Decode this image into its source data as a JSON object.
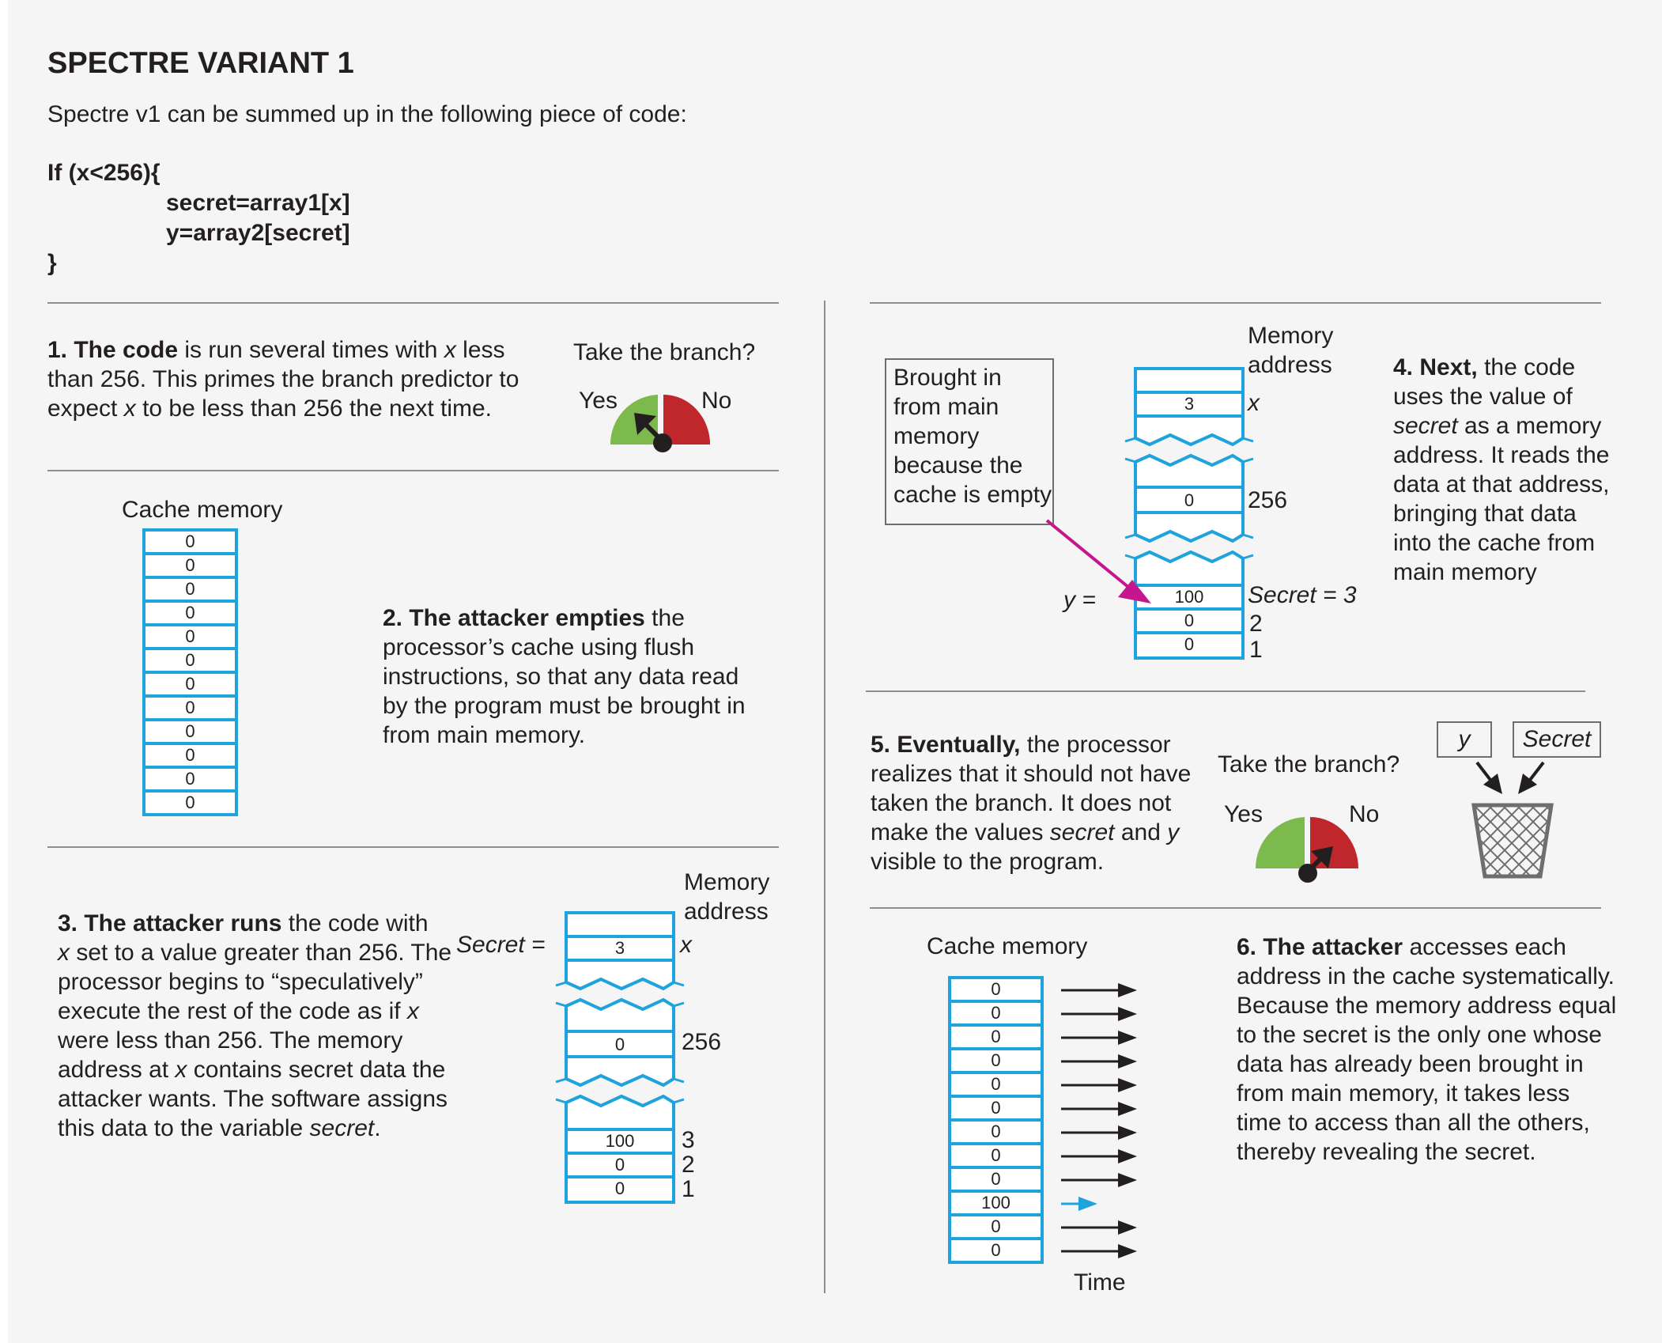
{
  "header": {
    "title": "SPECTRE VARIANT 1",
    "subtitle": "Spectre v1 can be summed up in the following piece of code:",
    "code_lines": [
      "If (x<256){",
      "secret=array1[x]",
      "y=array2[secret]",
      "}"
    ]
  },
  "step1": {
    "bold": "1. The code",
    "lines": [
      [
        "is run several times with ",
        "x",
        " less"
      ],
      [
        "than 256. This primes the branch predictor to"
      ],
      [
        "expect ",
        "x",
        " to be less than 256 the next time."
      ]
    ],
    "gauge_title": "Take the branch?",
    "yes": "Yes",
    "no": "No"
  },
  "step2": {
    "cache_label": "Cache memory",
    "cells": [
      "0",
      "0",
      "0",
      "0",
      "0",
      "0",
      "0",
      "0",
      "0",
      "0",
      "0",
      "0"
    ],
    "bold": "2. The attacker empties",
    "lines": [
      "the",
      "processor’s cache using flush",
      "instructions, so that any data read",
      "by the program must be brought in",
      "from main memory."
    ]
  },
  "step3": {
    "bold": "3. The attacker runs",
    "lines": [
      [
        "the code with"
      ],
      [
        "x",
        " set to a value greater than 256. The"
      ],
      [
        "processor begins to “speculatively”"
      ],
      [
        "execute the rest of the code as if ",
        "x"
      ],
      [
        "were less than 256. The memory"
      ],
      [
        "address at ",
        "x",
        " contains secret data the"
      ],
      [
        "attacker wants. The software assigns"
      ],
      [
        "this data to the variable ",
        "secret",
        "."
      ]
    ],
    "memory_address_label": [
      "Memory",
      "address"
    ],
    "secret_eq": "Secret =",
    "cells": {
      "x": "3",
      "256": "0",
      "low": [
        "100",
        "0",
        "0"
      ]
    },
    "addresses": {
      "x": "x",
      "mid": "256",
      "low": [
        "3",
        "2",
        "1"
      ]
    }
  },
  "step4": {
    "bold": "4. Next,",
    "lines": [
      [
        "the code"
      ],
      [
        "uses the value of"
      ],
      [
        "secret",
        " as a memory"
      ],
      [
        "address. It reads the"
      ],
      [
        "data at that address,"
      ],
      [
        "bringing that data"
      ],
      [
        "into the cache from"
      ],
      [
        "main memory"
      ]
    ],
    "callout": [
      "Brought in",
      "from main",
      "memory",
      "because the",
      "cache is empty"
    ],
    "memory_address_label": [
      "Memory",
      "address"
    ],
    "y_eq": "y =",
    "cells": {
      "x": "3",
      "256": "0",
      "low": [
        "100",
        "0",
        "0"
      ]
    },
    "addresses": {
      "x": "x",
      "mid": "256",
      "secret": "Secret = 3",
      "low": [
        "2",
        "1"
      ]
    }
  },
  "step5": {
    "bold": "5. Eventually,",
    "lines": [
      [
        "the processor"
      ],
      [
        "realizes that it should not have"
      ],
      [
        "taken the branch. It does not"
      ],
      [
        "make the values ",
        "secret",
        " and ",
        "y"
      ],
      [
        "visible to the program."
      ]
    ],
    "gauge_title": "Take the branch?",
    "yes": "Yes",
    "no": "No",
    "tag_y": "y",
    "tag_secret": "Secret"
  },
  "step6": {
    "cache_label": "Cache memory",
    "cells": [
      "0",
      "0",
      "0",
      "0",
      "0",
      "0",
      "0",
      "0",
      "0",
      "100",
      "0",
      "0"
    ],
    "time_label": "Time",
    "bold": "6. The attacker",
    "lines": [
      "accesses each",
      "address in the cache systematically.",
      "Because the memory address equal",
      "to the secret is the only one whose",
      "data has already been brought in",
      "from main memory, it takes less",
      "time to access than all the others,",
      "thereby revealing the secret."
    ]
  },
  "colors": {
    "cache_blue": "#1fa3dd",
    "gauge_green": "#7dba4e",
    "gauge_red": "#c0272d",
    "arrow_magenta": "#c6168d",
    "arrow_fast": "#1fa3dd",
    "divider": "#8f8f8f"
  }
}
